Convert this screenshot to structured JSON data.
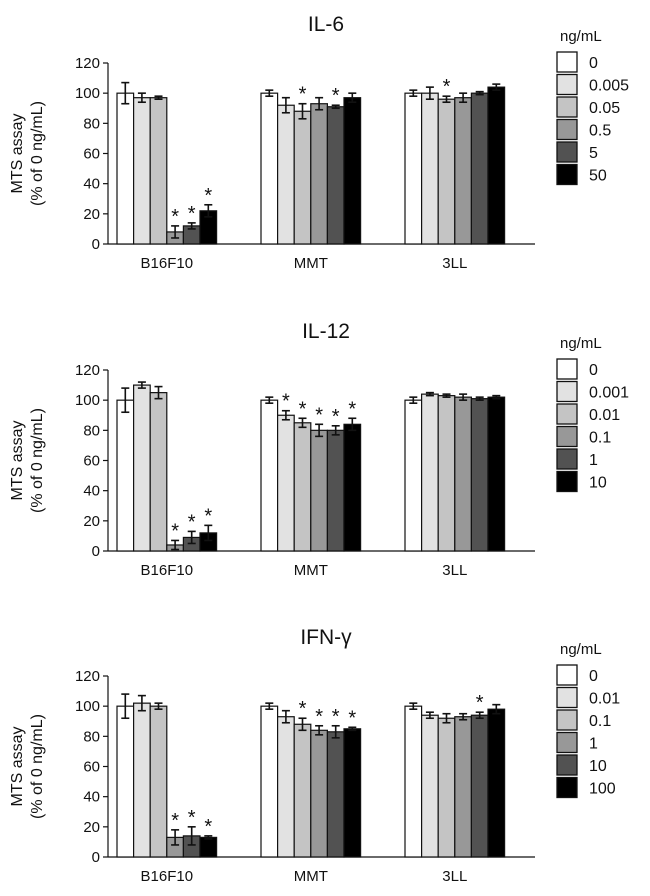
{
  "chart_data": [
    {
      "type": "bar",
      "title": "IL-6",
      "ylabel_line1": "MTS assay",
      "ylabel_line2": "(% of 0 ng/mL)",
      "ylim": [
        0,
        120
      ],
      "yticks": [
        0,
        20,
        40,
        60,
        80,
        100,
        120
      ],
      "categories": [
        "B16F10",
        "MMT",
        "3LL"
      ],
      "legend_title": "ng/mL",
      "series": [
        {
          "name": "0",
          "color": "#ffffff",
          "values": [
            100,
            100,
            100
          ],
          "errors": [
            7,
            2,
            2
          ],
          "sig": [
            false,
            false,
            false
          ]
        },
        {
          "name": "0.005",
          "color": "#e2e2e2",
          "values": [
            97,
            92,
            100
          ],
          "errors": [
            3,
            5,
            4
          ],
          "sig": [
            false,
            false,
            false
          ]
        },
        {
          "name": "0.05",
          "color": "#c4c4c4",
          "values": [
            97,
            88,
            96
          ],
          "errors": [
            1,
            5,
            2
          ],
          "sig": [
            false,
            true,
            true
          ]
        },
        {
          "name": "0.5",
          "color": "#989898",
          "values": [
            8,
            93,
            97
          ],
          "errors": [
            4,
            4,
            3
          ],
          "sig": [
            true,
            false,
            false
          ]
        },
        {
          "name": "5",
          "color": "#525252",
          "values": [
            12,
            91,
            100
          ],
          "errors": [
            2,
            1,
            1
          ],
          "sig": [
            true,
            true,
            false
          ]
        },
        {
          "name": "50",
          "color": "#000000",
          "values": [
            22,
            97,
            104
          ],
          "errors": [
            4,
            3,
            2
          ],
          "sig": [
            true,
            false,
            false
          ]
        }
      ]
    },
    {
      "type": "bar",
      "title": "IL-12",
      "ylabel_line1": "MTS assay",
      "ylabel_line2": "(% of 0 ng/mL)",
      "ylim": [
        0,
        120
      ],
      "yticks": [
        0,
        20,
        40,
        60,
        80,
        100,
        120
      ],
      "categories": [
        "B16F10",
        "MMT",
        "3LL"
      ],
      "legend_title": "ng/mL",
      "series": [
        {
          "name": "0",
          "color": "#ffffff",
          "values": [
            100,
            100,
            100
          ],
          "errors": [
            8,
            2,
            2
          ],
          "sig": [
            false,
            false,
            false
          ]
        },
        {
          "name": "0.001",
          "color": "#e2e2e2",
          "values": [
            110,
            90,
            104
          ],
          "errors": [
            2,
            3,
            1
          ],
          "sig": [
            false,
            true,
            false
          ]
        },
        {
          "name": "0.01",
          "color": "#c4c4c4",
          "values": [
            105,
            85,
            103
          ],
          "errors": [
            4,
            3,
            1
          ],
          "sig": [
            false,
            true,
            false
          ]
        },
        {
          "name": "0.1",
          "color": "#989898",
          "values": [
            4,
            80,
            102
          ],
          "errors": [
            3,
            4,
            2
          ],
          "sig": [
            true,
            true,
            false
          ]
        },
        {
          "name": "1",
          "color": "#525252",
          "values": [
            9,
            80,
            101
          ],
          "errors": [
            4,
            3,
            1
          ],
          "sig": [
            true,
            true,
            false
          ]
        },
        {
          "name": "10",
          "color": "#000000",
          "values": [
            12,
            84,
            102
          ],
          "errors": [
            5,
            4,
            1
          ],
          "sig": [
            true,
            true,
            false
          ]
        }
      ]
    },
    {
      "type": "bar",
      "title": "IFN-γ",
      "ylabel_line1": "MTS assay",
      "ylabel_line2": "(% of 0 ng/mL)",
      "ylim": [
        0,
        120
      ],
      "yticks": [
        0,
        20,
        40,
        60,
        80,
        100,
        120
      ],
      "categories": [
        "B16F10",
        "MMT",
        "3LL"
      ],
      "legend_title": "ng/mL",
      "series": [
        {
          "name": "0",
          "color": "#ffffff",
          "values": [
            100,
            100,
            100
          ],
          "errors": [
            8,
            2,
            2
          ],
          "sig": [
            false,
            false,
            false
          ]
        },
        {
          "name": "0.01",
          "color": "#e2e2e2",
          "values": [
            102,
            93,
            94
          ],
          "errors": [
            5,
            4,
            2
          ],
          "sig": [
            false,
            false,
            false
          ]
        },
        {
          "name": "0.1",
          "color": "#c4c4c4",
          "values": [
            100,
            88,
            92
          ],
          "errors": [
            2,
            4,
            3
          ],
          "sig": [
            false,
            true,
            false
          ]
        },
        {
          "name": "1",
          "color": "#989898",
          "values": [
            13,
            84,
            93
          ],
          "errors": [
            5,
            3,
            2
          ],
          "sig": [
            true,
            true,
            false
          ]
        },
        {
          "name": "10",
          "color": "#525252",
          "values": [
            14,
            83,
            94
          ],
          "errors": [
            6,
            4,
            2
          ],
          "sig": [
            true,
            true,
            true
          ]
        },
        {
          "name": "100",
          "color": "#000000",
          "values": [
            13,
            85,
            98
          ],
          "errors": [
            1,
            1,
            3
          ],
          "sig": [
            true,
            true,
            false
          ]
        }
      ]
    }
  ],
  "significance_marker": "*"
}
